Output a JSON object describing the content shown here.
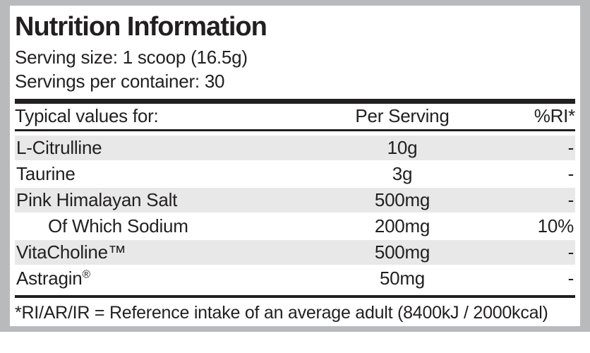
{
  "title": "Nutrition Information",
  "serving_size": "Serving size: 1 scoop (16.5g)",
  "servings_per_container": "Servings per container: 30",
  "table": {
    "columns": {
      "name": "Typical values for:",
      "per_serving": "Per Serving",
      "ri": "%RI*"
    },
    "rows": [
      {
        "label": "L-Citrulline",
        "per_serving": "10g",
        "ri": "-"
      },
      {
        "label": "Taurine",
        "per_serving": "3g",
        "ri": "-"
      },
      {
        "label": "Pink Himalayan Salt",
        "per_serving": "500mg",
        "ri": "-"
      },
      {
        "label": "Of Which Sodium",
        "per_serving": "200mg",
        "ri": "10%",
        "indent": true
      },
      {
        "label": "VitaCholine",
        "suffix": "™",
        "per_serving": "500mg",
        "ri": "-"
      },
      {
        "label": "Astragin",
        "suffix": "®",
        "sup": true,
        "per_serving": "50mg",
        "ri": "-"
      }
    ]
  },
  "footnote": "*RI/AR/IR = Reference intake of an average adult (8400kJ / 2000kcal)",
  "colors": {
    "frame_gray": "#b8babc",
    "stripe_gray": "#e8e8e9",
    "text_black": "#221f20"
  }
}
